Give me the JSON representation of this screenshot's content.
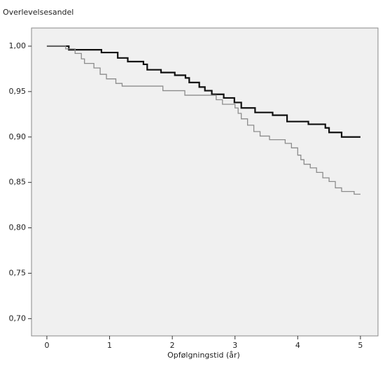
{
  "chart_data": {
    "type": "step",
    "y_label": "Overlevelsesandel",
    "x_label": "Opfølgningstid (år)",
    "xlim": [
      -0.245,
      5.28
    ],
    "xticks": [
      0,
      1,
      2,
      3,
      4,
      5
    ],
    "ylim": [
      0.681,
      1.02
    ],
    "yticks": [
      {
        "value": 1.0,
        "label": "1,00"
      },
      {
        "value": 0.95,
        "label": "0,95"
      },
      {
        "value": 0.9,
        "label": "0,90"
      },
      {
        "value": 0.85,
        "label": "0,85"
      },
      {
        "value": 0.8,
        "label": "0,80"
      },
      {
        "value": 0.75,
        "label": "0,75"
      },
      {
        "value": 0.7,
        "label": "0,70"
      }
    ],
    "series": [
      {
        "color": "#111111",
        "x": [
          0,
          0.35,
          0.87,
          1.13,
          1.29,
          1.54,
          1.6,
          1.82,
          2.04,
          2.21,
          2.27,
          2.43,
          2.52,
          2.63,
          2.82,
          2.99,
          3.1,
          3.32,
          3.6,
          3.83,
          4.17,
          4.44,
          4.5,
          4.7,
          5.0
        ],
        "values": [
          1.0,
          0.996,
          0.993,
          0.987,
          0.983,
          0.98,
          0.974,
          0.971,
          0.968,
          0.965,
          0.96,
          0.955,
          0.951,
          0.947,
          0.943,
          0.938,
          0.932,
          0.927,
          0.924,
          0.917,
          0.914,
          0.91,
          0.905,
          0.9,
          0.9
        ]
      },
      {
        "color": "#8c8c8c",
        "x": [
          0,
          0.3,
          0.45,
          0.55,
          0.6,
          0.75,
          0.85,
          0.95,
          1.1,
          1.2,
          1.85,
          2.2,
          2.7,
          2.8,
          3.0,
          3.05,
          3.1,
          3.2,
          3.3,
          3.4,
          3.55,
          3.8,
          3.9,
          4.0,
          4.05,
          4.1,
          4.2,
          4.3,
          4.4,
          4.5,
          4.6,
          4.7,
          4.9,
          5.0
        ],
        "values": [
          1.0,
          0.997,
          0.992,
          0.986,
          0.981,
          0.976,
          0.969,
          0.964,
          0.959,
          0.956,
          0.951,
          0.946,
          0.941,
          0.936,
          0.932,
          0.926,
          0.92,
          0.913,
          0.906,
          0.901,
          0.897,
          0.893,
          0.888,
          0.88,
          0.875,
          0.87,
          0.866,
          0.861,
          0.855,
          0.851,
          0.844,
          0.84,
          0.837,
          0.837
        ]
      }
    ]
  }
}
